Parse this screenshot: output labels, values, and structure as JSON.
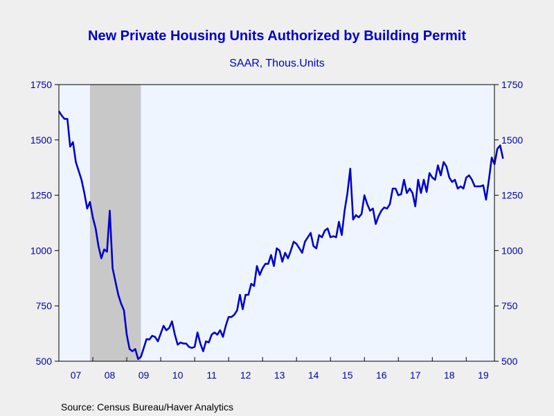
{
  "chart_data": {
    "type": "line",
    "title": "New Private Housing Units Authorized by Building Permit",
    "subtitle": "SAAR, Thous.Units",
    "source": "Source:  Census Bureau/Haver Analytics",
    "ylim": [
      500,
      1750
    ],
    "yticks": [
      500,
      750,
      1000,
      1250,
      1500,
      1750
    ],
    "ytick_labels": [
      "500",
      "750",
      "1000",
      "1250",
      "1500",
      "1750"
    ],
    "xlim": [
      2007.0,
      2019.83
    ],
    "xtick_labels": [
      "07",
      "08",
      "09",
      "10",
      "11",
      "12",
      "13",
      "14",
      "15",
      "16",
      "17",
      "18",
      "19"
    ],
    "recession": {
      "start": 2007.917,
      "end": 2009.417
    },
    "series": [
      {
        "color": "#0000cc",
        "x_start": 2007.0,
        "x_step": 0.08333,
        "values": [
          1630,
          1610,
          1595,
          1595,
          1470,
          1490,
          1400,
          1360,
          1320,
          1260,
          1190,
          1220,
          1150,
          1100,
          1020,
          965,
          1005,
          995,
          1180,
          920,
          860,
          800,
          760,
          730,
          620,
          555,
          545,
          555,
          510,
          520,
          560,
          600,
          598,
          615,
          610,
          590,
          625,
          660,
          640,
          650,
          680,
          620,
          575,
          585,
          580,
          580,
          565,
          560,
          565,
          630,
          580,
          545,
          590,
          585,
          620,
          630,
          620,
          640,
          610,
          660,
          700,
          700,
          710,
          730,
          800,
          735,
          800,
          800,
          850,
          840,
          930,
          890,
          920,
          940,
          940,
          980,
          930,
          1010,
          1000,
          950,
          990,
          965,
          1000,
          1040,
          1030,
          1010,
          990,
          1040,
          1060,
          1080,
          1020,
          1010,
          1070,
          1060,
          1090,
          1100,
          1060,
          1065,
          1060,
          1130,
          1070,
          1180,
          1260,
          1370,
          1140,
          1160,
          1150,
          1165,
          1250,
          1210,
          1180,
          1190,
          1120,
          1155,
          1180,
          1195,
          1190,
          1210,
          1280,
          1280,
          1250,
          1255,
          1320,
          1260,
          1280,
          1260,
          1200,
          1320,
          1260,
          1320,
          1265,
          1350,
          1330,
          1320,
          1385,
          1340,
          1400,
          1380,
          1330,
          1310,
          1320,
          1280,
          1290,
          1280,
          1330,
          1340,
          1320,
          1290,
          1290,
          1290,
          1295,
          1230,
          1320,
          1420,
          1390,
          1460,
          1475,
          1415
        ]
      }
    ]
  }
}
